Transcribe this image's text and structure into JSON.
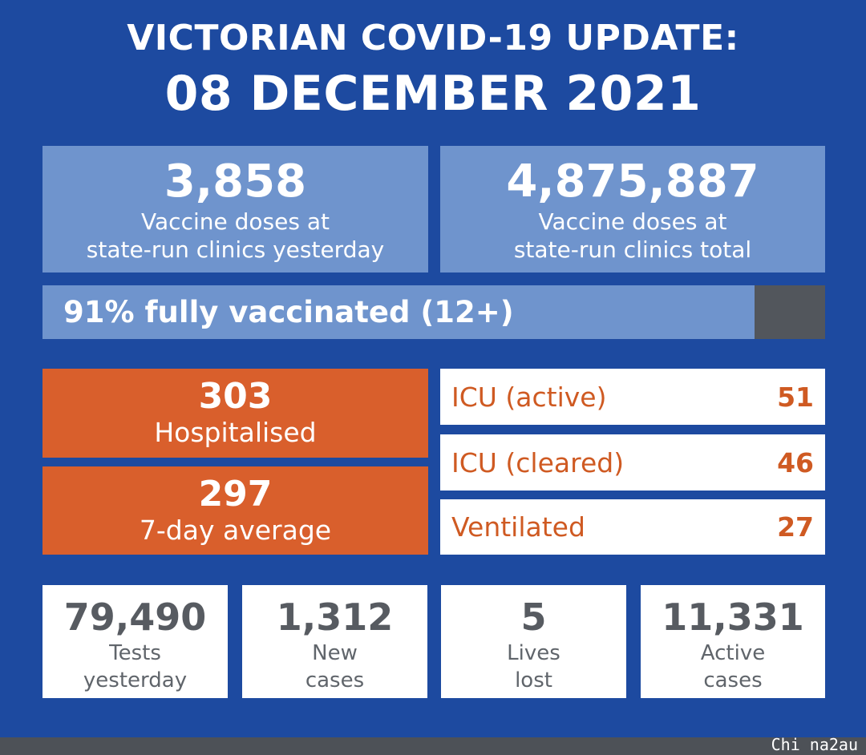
{
  "header": {
    "title": "VICTORIAN COVID-19 UPDATE:",
    "date": "08 DECEMBER 2021"
  },
  "vaccine": {
    "yesterday": {
      "value": "3,858",
      "line1": "Vaccine doses at",
      "line2": "state-run clinics yesterday"
    },
    "total": {
      "value": "4,875,887",
      "line1": "Vaccine doses at",
      "line2": "state-run clinics total"
    },
    "fully_vaccinated": {
      "label": "91% fully vaccinated (12+)",
      "percent": 91
    }
  },
  "hospital": {
    "hospitalised": {
      "value": "303",
      "label": "Hospitalised"
    },
    "seven_day": {
      "value": "297",
      "label": "7-day average"
    }
  },
  "icu": [
    {
      "label": "ICU (active)",
      "value": "51"
    },
    {
      "label": "ICU (cleared)",
      "value": "46"
    },
    {
      "label": "Ventilated",
      "value": "27"
    }
  ],
  "stats": [
    {
      "value": "79,490",
      "line1": "Tests",
      "line2": "yesterday"
    },
    {
      "value": "1,312",
      "line1": "New",
      "line2": "cases"
    },
    {
      "value": "5",
      "line1": "Lives",
      "line2": "lost"
    },
    {
      "value": "11,331",
      "line1": "Active",
      "line2": "cases"
    }
  ],
  "watermark": "Chi na2au",
  "colors": {
    "background": "#1d4aa0",
    "panel_blue": "#6f94cd",
    "orange": "#d95f2c",
    "grey": "#52565c",
    "white": "#ffffff"
  }
}
